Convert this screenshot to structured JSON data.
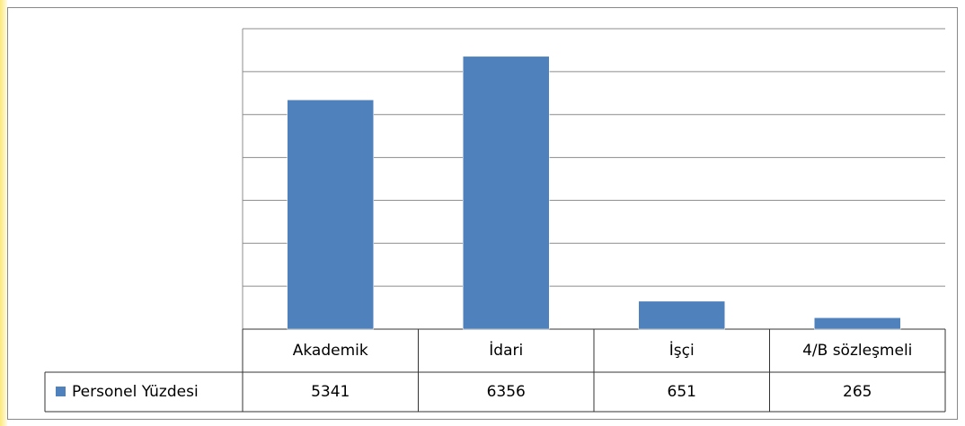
{
  "chart_data": {
    "type": "bar",
    "categories": [
      "Akademik",
      "İdari",
      "İşçi",
      "4/B sözleşmeli"
    ],
    "series": [
      {
        "name": "Personel Yüzdesi",
        "color": "#4f81bd",
        "values": [
          5341,
          6356,
          651,
          265
        ]
      }
    ],
    "ylim": [
      0,
      7000
    ],
    "yticks": [
      0,
      1000,
      2000,
      3000,
      4000,
      5000,
      6000,
      7000
    ],
    "grid": true,
    "legend": "data-table"
  }
}
